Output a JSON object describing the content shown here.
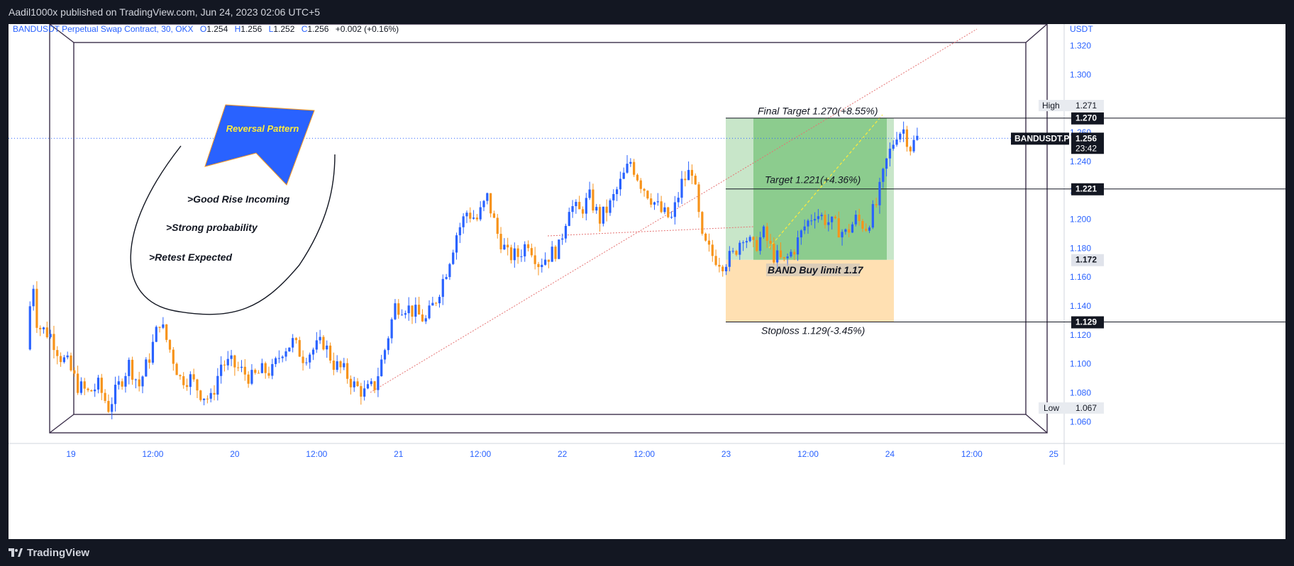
{
  "header": {
    "published": "Aadil1000x published on TradingView.com, Jun 24, 2023 02:06 UTC+5"
  },
  "legend": {
    "symbol": "BANDUSDT Perpetual Swap Contract, 30, OKX",
    "o_label": "O",
    "o": "1.254",
    "h_label": "H",
    "h": "1.256",
    "l_label": "L",
    "l": "1.252",
    "c_label": "C",
    "c": "1.256",
    "change": "+0.002 (+0.16%)"
  },
  "colors": {
    "up": "#2962ff",
    "down": "#f7931a",
    "grid_frame": "#3b2f4a",
    "profit_zone": "#4caf50",
    "profit_zone_light": "#a5d6a7",
    "stop_zone": "#ffe0b2",
    "callout": "#2962ff",
    "callout_text": "#ffeb3b",
    "trend_line": "#e57373"
  },
  "annotations": {
    "callout": "Reversal Pattern",
    "notes": [
      ">Good Rise Incoming",
      ">Strong probability",
      ">Retest Expected"
    ],
    "final_target": "Final Target 1.270(+8.55%)",
    "target": "Target 1.221(+4.36%)",
    "buy_limit": "BAND Buy limit 1.17",
    "stoploss": "Stoploss 1.129(-3.45%)"
  },
  "price_axis": {
    "currency": "USDT",
    "high_label": "High",
    "low_label": "Low",
    "high_value": "1.271",
    "low_value": "1.067",
    "symbol_tag": "BANDUSDT.P",
    "last_price": "1.256",
    "countdown": "23:42",
    "level_tags": [
      "1.270",
      "1.221",
      "1.172",
      "1.129"
    ]
  },
  "footer": {
    "brand": "TradingView"
  },
  "chart_data": {
    "type": "candlestick",
    "interval": "30",
    "exchange": "OKX",
    "ylim": [
      1.045,
      1.335
    ],
    "yticks": [
      1.06,
      1.08,
      1.1,
      1.12,
      1.14,
      1.16,
      1.18,
      1.2,
      1.22,
      1.24,
      1.26,
      1.3,
      1.32
    ],
    "ytick_labels": [
      "1.060",
      "1.080",
      "1.100",
      "1.120",
      "1.140",
      "1.160",
      "1.180",
      "1.200",
      "1.220",
      "1.240",
      "1.260",
      "1.300",
      "1.320"
    ],
    "xticks": [
      {
        "t": 0,
        "label": "19"
      },
      {
        "t": 24,
        "label": "12:00"
      },
      {
        "t": 48,
        "label": "20"
      },
      {
        "t": 72,
        "label": "12:00"
      },
      {
        "t": 96,
        "label": "21"
      },
      {
        "t": 120,
        "label": "12:00"
      },
      {
        "t": 144,
        "label": "22"
      },
      {
        "t": 168,
        "label": "12:00"
      },
      {
        "t": 192,
        "label": "23"
      },
      {
        "t": 216,
        "label": "12:00"
      },
      {
        "t": 240,
        "label": "24"
      },
      {
        "t": 264,
        "label": "12:00"
      },
      {
        "t": 288,
        "label": "25"
      }
    ],
    "levels": {
      "final_target": 1.27,
      "target": 1.221,
      "entry": 1.172,
      "stoploss": 1.129,
      "last": 1.256
    },
    "close_path": [
      [
        -13,
        1.11
      ],
      [
        -12,
        1.14
      ],
      [
        -11,
        1.155
      ],
      [
        -10,
        1.13
      ],
      [
        -9,
        1.125
      ],
      [
        -6,
        1.12
      ],
      [
        -3,
        1.105
      ],
      [
        -1,
        1.1
      ],
      [
        2,
        1.085
      ],
      [
        5,
        1.08
      ],
      [
        8,
        1.085
      ],
      [
        11,
        1.07
      ],
      [
        14,
        1.085
      ],
      [
        17,
        1.1
      ],
      [
        20,
        1.085
      ],
      [
        23,
        1.105
      ],
      [
        26,
        1.13
      ],
      [
        29,
        1.11
      ],
      [
        32,
        1.09
      ],
      [
        35,
        1.09
      ],
      [
        38,
        1.08
      ],
      [
        41,
        1.075
      ],
      [
        44,
        1.1
      ],
      [
        47,
        1.1
      ],
      [
        50,
        1.095
      ],
      [
        53,
        1.09
      ],
      [
        56,
        1.095
      ],
      [
        59,
        1.095
      ],
      [
        62,
        1.11
      ],
      [
        65,
        1.115
      ],
      [
        68,
        1.105
      ],
      [
        71,
        1.11
      ],
      [
        74,
        1.115
      ],
      [
        77,
        1.1
      ],
      [
        80,
        1.095
      ],
      [
        83,
        1.085
      ],
      [
        86,
        1.08
      ],
      [
        89,
        1.085
      ],
      [
        92,
        1.11
      ],
      [
        95,
        1.14
      ],
      [
        98,
        1.14
      ],
      [
        101,
        1.135
      ],
      [
        104,
        1.13
      ],
      [
        107,
        1.145
      ],
      [
        110,
        1.165
      ],
      [
        113,
        1.19
      ],
      [
        116,
        1.205
      ],
      [
        119,
        1.2
      ],
      [
        122,
        1.215
      ],
      [
        125,
        1.19
      ],
      [
        128,
        1.175
      ],
      [
        131,
        1.175
      ],
      [
        134,
        1.185
      ],
      [
        137,
        1.17
      ],
      [
        140,
        1.175
      ],
      [
        143,
        1.18
      ],
      [
        146,
        1.21
      ],
      [
        149,
        1.205
      ],
      [
        152,
        1.215
      ],
      [
        155,
        1.2
      ],
      [
        158,
        1.21
      ],
      [
        161,
        1.225
      ],
      [
        164,
        1.24
      ],
      [
        167,
        1.225
      ],
      [
        170,
        1.215
      ],
      [
        173,
        1.205
      ],
      [
        176,
        1.2
      ],
      [
        179,
        1.225
      ],
      [
        182,
        1.235
      ],
      [
        185,
        1.185
      ],
      [
        188,
        1.175
      ],
      [
        191,
        1.17
      ],
      [
        194,
        1.175
      ],
      [
        197,
        1.19
      ],
      [
        200,
        1.18
      ],
      [
        203,
        1.19
      ],
      [
        206,
        1.175
      ],
      [
        209,
        1.17
      ],
      [
        212,
        1.18
      ],
      [
        215,
        1.195
      ],
      [
        218,
        1.205
      ],
      [
        221,
        1.2
      ],
      [
        224,
        1.195
      ],
      [
        227,
        1.19
      ],
      [
        230,
        1.2
      ],
      [
        233,
        1.195
      ],
      [
        236,
        1.21
      ],
      [
        239,
        1.24
      ],
      [
        242,
        1.26
      ],
      [
        244,
        1.262
      ],
      [
        246,
        1.25
      ],
      [
        248,
        1.256
      ]
    ]
  }
}
